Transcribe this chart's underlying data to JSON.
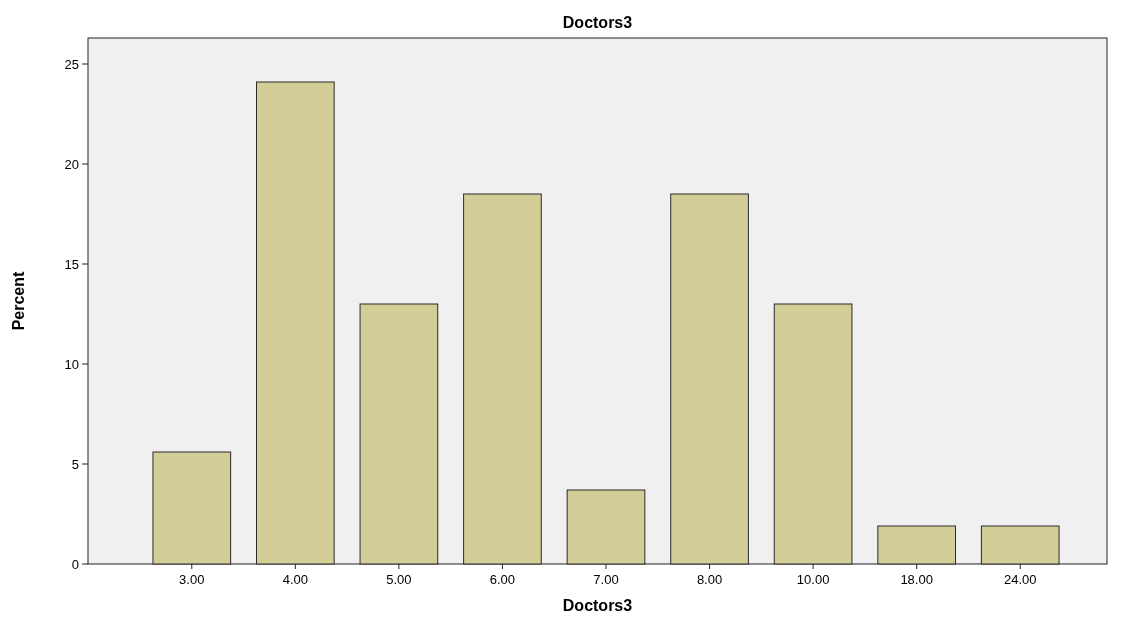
{
  "chart_data": {
    "type": "bar",
    "title": "Doctors3",
    "xlabel": "Doctors3",
    "ylabel": "Percent",
    "categories": [
      "3.00",
      "4.00",
      "5.00",
      "6.00",
      "7.00",
      "8.00",
      "10.00",
      "18.00",
      "24.00"
    ],
    "values": [
      5.6,
      24.1,
      13.0,
      18.5,
      3.7,
      18.5,
      13.0,
      1.9,
      1.9
    ],
    "color": "#d3ce97",
    "ylim": [
      0,
      26.3
    ],
    "yticks": [
      0,
      5,
      10,
      15,
      20,
      25
    ],
    "grid": false
  }
}
